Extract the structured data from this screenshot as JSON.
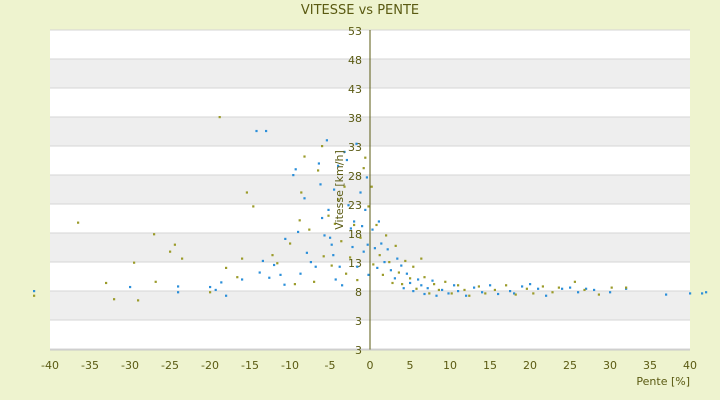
{
  "chart_data": {
    "type": "scatter",
    "title": "VITESSE vs PENTE",
    "xlabel": "Pente [%]",
    "ylabel": "Vitesse [km/h]",
    "xlim": [
      -40,
      40
    ],
    "ylim": [
      3,
      53
    ],
    "x_ticks": [
      "-40",
      "-35",
      "-30",
      "-25",
      "-20",
      "-15",
      "-10",
      "-5",
      "0",
      "5",
      "10",
      "15",
      "20",
      "25",
      "30",
      "35",
      "40"
    ],
    "y_ticks": [
      "3",
      "3",
      "8",
      "13",
      "18",
      "23",
      "28",
      "33",
      "38",
      "43",
      "48",
      "53"
    ],
    "grid": true,
    "band_colors": [
      "#ffffff",
      "#eeeeee"
    ],
    "colors": {
      "series_a": "#2b8fd9",
      "series_b": "#9b9b2a",
      "axis": "#5a5a12",
      "background": "#eef3cf"
    },
    "series": [
      {
        "color": "#2b8fd9",
        "points": [
          [
            -42,
            8
          ],
          [
            -30,
            8.7
          ],
          [
            -24,
            8.8
          ],
          [
            -24,
            7.8
          ],
          [
            -20,
            8.7
          ],
          [
            -19.3,
            8.2
          ],
          [
            -18.6,
            9.5
          ],
          [
            -18,
            7.2
          ],
          [
            -16,
            10
          ],
          [
            -14.2,
            35.6
          ],
          [
            -13,
            35.6
          ],
          [
            -13.4,
            13.2
          ],
          [
            -13.8,
            11.2
          ],
          [
            -12.6,
            10.3
          ],
          [
            -12,
            12.5
          ],
          [
            -11.2,
            10.8
          ],
          [
            -10.7,
            9.1
          ],
          [
            -10.6,
            17
          ],
          [
            -9.6,
            28
          ],
          [
            -9.3,
            29
          ],
          [
            -9,
            18.2
          ],
          [
            -8.7,
            11
          ],
          [
            -8.2,
            24
          ],
          [
            -7.9,
            14.6
          ],
          [
            -7.4,
            13
          ],
          [
            -6.8,
            12.2
          ],
          [
            -6.4,
            30
          ],
          [
            -6.2,
            26.4
          ],
          [
            -6,
            20.6
          ],
          [
            -5.7,
            17.6
          ],
          [
            -5.4,
            34
          ],
          [
            -5.2,
            22
          ],
          [
            -5,
            17.2
          ],
          [
            -4.8,
            16
          ],
          [
            -4.6,
            14.2
          ],
          [
            -4.5,
            25.5
          ],
          [
            -4.3,
            10
          ],
          [
            -4,
            29.6
          ],
          [
            -3.8,
            12.2
          ],
          [
            -3.5,
            9
          ],
          [
            -3.2,
            32
          ],
          [
            -2.9,
            30.6
          ],
          [
            -2.7,
            22.8
          ],
          [
            -2.4,
            18.8
          ],
          [
            -2.2,
            15.6
          ],
          [
            -2,
            20
          ],
          [
            -1.7,
            33.4
          ],
          [
            -1.6,
            12.2
          ],
          [
            -1.2,
            25
          ],
          [
            -1,
            19.2
          ],
          [
            -0.8,
            14.8
          ],
          [
            -0.6,
            22
          ],
          [
            -0.4,
            27.6
          ],
          [
            -0.3,
            16
          ],
          [
            -0.2,
            10.8
          ],
          [
            0.3,
            18.6
          ],
          [
            0.6,
            15.4
          ],
          [
            0.9,
            12
          ],
          [
            1.1,
            20
          ],
          [
            1.4,
            16.2
          ],
          [
            1.8,
            13
          ],
          [
            2.2,
            15.2
          ],
          [
            2.6,
            11.6
          ],
          [
            3.1,
            10.2
          ],
          [
            3.4,
            13.6
          ],
          [
            3.9,
            12.4
          ],
          [
            4.2,
            8.5
          ],
          [
            4.6,
            11
          ],
          [
            5,
            9.4
          ],
          [
            5.4,
            8
          ],
          [
            6,
            10
          ],
          [
            6.4,
            9
          ],
          [
            6.8,
            7.5
          ],
          [
            7.2,
            8.5
          ],
          [
            7.8,
            9.8
          ],
          [
            8.3,
            7.2
          ],
          [
            9,
            8.2
          ],
          [
            9.8,
            7.6
          ],
          [
            10.5,
            9
          ],
          [
            11,
            8
          ],
          [
            12,
            7.2
          ],
          [
            13,
            8.6
          ],
          [
            14,
            7.8
          ],
          [
            15,
            9
          ],
          [
            16,
            7.5
          ],
          [
            17.5,
            8
          ],
          [
            18,
            7.6
          ],
          [
            19,
            8.8
          ],
          [
            20,
            9.2
          ],
          [
            21,
            8.4
          ],
          [
            22,
            7.2
          ],
          [
            24,
            8.4
          ],
          [
            25,
            8.6
          ],
          [
            26,
            7.8
          ],
          [
            27,
            8.4
          ],
          [
            28,
            8.2
          ],
          [
            30,
            7.8
          ],
          [
            32,
            8.4
          ],
          [
            37,
            7.4
          ],
          [
            40,
            7.6
          ],
          [
            41.5,
            7.6
          ],
          [
            42,
            7.8
          ]
        ]
      },
      {
        "color": "#9b9b2a",
        "points": [
          [
            -42,
            7.2
          ],
          [
            -36.5,
            19.8
          ],
          [
            -33,
            9.4
          ],
          [
            -32,
            6.6
          ],
          [
            -29.5,
            12.9
          ],
          [
            -29,
            6.4
          ],
          [
            -27,
            17.8
          ],
          [
            -26.8,
            9.6
          ],
          [
            -25,
            14.8
          ],
          [
            -24.4,
            16
          ],
          [
            -23.5,
            13.6
          ],
          [
            -20,
            7.8
          ],
          [
            -18.8,
            38
          ],
          [
            -18,
            12
          ],
          [
            -16.6,
            10.4
          ],
          [
            -16,
            13.6
          ],
          [
            -15.4,
            25
          ],
          [
            -14.6,
            22.6
          ],
          [
            -12.2,
            14.2
          ],
          [
            -11.6,
            12.8
          ],
          [
            -10,
            16.2
          ],
          [
            -9.4,
            9.2
          ],
          [
            -8.8,
            20.2
          ],
          [
            -8.6,
            25
          ],
          [
            -8.2,
            31.2
          ],
          [
            -7.6,
            18.6
          ],
          [
            -7,
            9.6
          ],
          [
            -6.5,
            28.8
          ],
          [
            -6,
            33
          ],
          [
            -5.8,
            14
          ],
          [
            -5.2,
            21
          ],
          [
            -4.8,
            12.4
          ],
          [
            -4.4,
            19.6
          ],
          [
            -4,
            23.8
          ],
          [
            -3.6,
            16.6
          ],
          [
            -3.2,
            26
          ],
          [
            -3,
            11
          ],
          [
            -2.5,
            13.8
          ],
          [
            -2,
            19.4
          ],
          [
            -1.6,
            9.9
          ],
          [
            -1.2,
            17.2
          ],
          [
            -0.8,
            29.2
          ],
          [
            -0.6,
            31
          ],
          [
            -0.2,
            22.6
          ],
          [
            0.2,
            26
          ],
          [
            0.4,
            12.6
          ],
          [
            0.8,
            19.4
          ],
          [
            1.2,
            14.2
          ],
          [
            1.6,
            10.8
          ],
          [
            2,
            17.6
          ],
          [
            2.4,
            13
          ],
          [
            2.8,
            9.4
          ],
          [
            3.2,
            15.8
          ],
          [
            3.6,
            11.2
          ],
          [
            4,
            9.2
          ],
          [
            4.4,
            13.2
          ],
          [
            5,
            10.2
          ],
          [
            5.4,
            12.2
          ],
          [
            5.8,
            8.4
          ],
          [
            6.4,
            13.6
          ],
          [
            6.8,
            10.4
          ],
          [
            7.4,
            7.6
          ],
          [
            8,
            9.2
          ],
          [
            8.6,
            8.2
          ],
          [
            9.4,
            9.6
          ],
          [
            10.2,
            7.6
          ],
          [
            11,
            9
          ],
          [
            11.8,
            8.2
          ],
          [
            12.4,
            7.2
          ],
          [
            13.6,
            8.8
          ],
          [
            14.4,
            7.6
          ],
          [
            15.6,
            8.2
          ],
          [
            17,
            9
          ],
          [
            18.2,
            7.4
          ],
          [
            19.6,
            8.4
          ],
          [
            20.4,
            7.6
          ],
          [
            21.6,
            8.8
          ],
          [
            22.8,
            7.8
          ],
          [
            23.6,
            8.6
          ],
          [
            25.6,
            9.6
          ],
          [
            26.8,
            8.2
          ],
          [
            28.6,
            7.4
          ],
          [
            30.2,
            8.6
          ],
          [
            32,
            8.6
          ]
        ]
      }
    ]
  }
}
